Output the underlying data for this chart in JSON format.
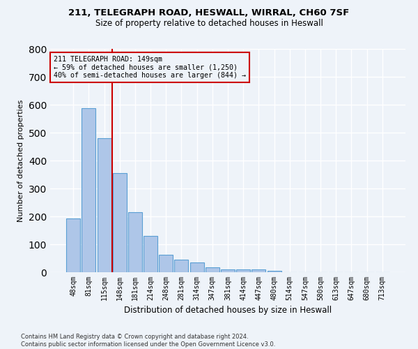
{
  "title_line1": "211, TELEGRAPH ROAD, HESWALL, WIRRAL, CH60 7SF",
  "title_line2": "Size of property relative to detached houses in Heswall",
  "xlabel": "Distribution of detached houses by size in Heswall",
  "ylabel": "Number of detached properties",
  "footnote": "Contains HM Land Registry data © Crown copyright and database right 2024.\nContains public sector information licensed under the Open Government Licence v3.0.",
  "bar_labels": [
    "48sqm",
    "81sqm",
    "115sqm",
    "148sqm",
    "181sqm",
    "214sqm",
    "248sqm",
    "281sqm",
    "314sqm",
    "347sqm",
    "381sqm",
    "414sqm",
    "447sqm",
    "480sqm",
    "514sqm",
    "547sqm",
    "580sqm",
    "613sqm",
    "647sqm",
    "680sqm",
    "713sqm"
  ],
  "bar_values": [
    193,
    587,
    481,
    355,
    215,
    130,
    63,
    45,
    35,
    17,
    10,
    10,
    10,
    5,
    0,
    0,
    0,
    0,
    0,
    0,
    0
  ],
  "bar_color": "#aec6e8",
  "bar_edge_color": "#5a9fd4",
  "background_color": "#eef3f9",
  "grid_color": "#ffffff",
  "vline_color": "#cc0000",
  "annotation_text": "211 TELEGRAPH ROAD: 149sqm\n← 59% of detached houses are smaller (1,250)\n40% of semi-detached houses are larger (844) →",
  "annotation_box_color": "#cc0000",
  "ylim": [
    0,
    800
  ],
  "yticks": [
    0,
    100,
    200,
    300,
    400,
    500,
    600,
    700,
    800
  ]
}
